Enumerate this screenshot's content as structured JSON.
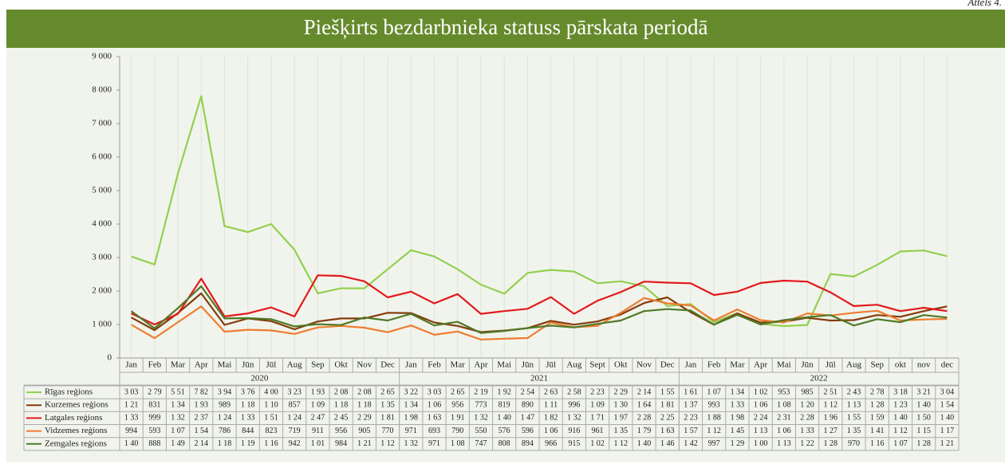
{
  "figure_label": "Attēls 4.",
  "chart_data": {
    "type": "line",
    "title": "Piešķirts bezdarbnieka statuss pārskata periodā",
    "categories": [
      "Jan",
      "Feb",
      "Mar",
      "Apr",
      "Mai",
      "Jūn",
      "Jūl",
      "Aug",
      "Sep",
      "Okt",
      "Nov",
      "Dec",
      "Jan",
      "Feb",
      "Mar",
      "Apr",
      "Mai",
      "Jūn",
      "Jūl",
      "Aug",
      "Sept",
      "Okt",
      "Nov",
      "Dec",
      "Jan",
      "Feb",
      "Mar",
      "Apr",
      "Mai",
      "Jūn",
      "Jūl",
      "Aug",
      "Sep",
      "okt",
      "nov",
      "dec"
    ],
    "category_groups": [
      "2020",
      "2021",
      "2022"
    ],
    "ylim": [
      0,
      9000
    ],
    "yticks": [
      0,
      {
        "value": 1000,
        "label": "1 000"
      },
      {
        "value": 2000,
        "label": "2 000"
      },
      {
        "value": 3000,
        "label": "3 000"
      },
      {
        "value": 4000,
        "label": "4 000"
      },
      {
        "value": 5000,
        "label": "5 000"
      },
      {
        "value": 6000,
        "label": "6 000"
      },
      {
        "value": 7000,
        "label": "7 000"
      },
      {
        "value": 8000,
        "label": "8 000"
      },
      {
        "value": 9000,
        "label": "9 000"
      }
    ],
    "grid": true,
    "series": [
      {
        "name": "Rīgas reģions",
        "color": "#92d050",
        "values": [
          3030,
          2790,
          5510,
          7820,
          3940,
          3760,
          4000,
          3230,
          1930,
          2080,
          2080,
          2650,
          3220,
          3030,
          2650,
          2190,
          1920,
          2540,
          2630,
          2580,
          2230,
          2290,
          2140,
          1550,
          1610,
          1070,
          1340,
          1020,
          953,
          985,
          2510,
          2430,
          2780,
          3180,
          3210,
          3040
        ],
        "value_labels": [
          "3 03",
          "2 79",
          "5 51",
          "7 82",
          "3 94",
          "3 76",
          "4 00",
          "3 23",
          "1 93",
          "2 08",
          "2 08",
          "2 65",
          "3 22",
          "3 03",
          "2 65",
          "2 19",
          "1 92",
          "2 54",
          "2 63",
          "2 58",
          "2 23",
          "2 29",
          "2 14",
          "1 55",
          "1 61",
          "1 07",
          "1 34",
          "1 02",
          "953",
          "985",
          "2 51",
          "2 43",
          "2 78",
          "3 18",
          "3 21",
          "3 04"
        ]
      },
      {
        "name": "Kurzemes reģions",
        "color": "#843c0c",
        "values": [
          1210,
          831,
          1340,
          1930,
          989,
          1180,
          1100,
          857,
          1090,
          1180,
          1180,
          1350,
          1340,
          1060,
          956,
          773,
          819,
          890,
          1110,
          996,
          1090,
          1300,
          1640,
          1810,
          1370,
          993,
          1330,
          1060,
          1080,
          1200,
          1120,
          1130,
          1280,
          1230,
          1400,
          1540
        ],
        "value_labels": [
          "1 21",
          "831",
          "1 34",
          "1 93",
          "989",
          "1 18",
          "1 10",
          "857",
          "1 09",
          "1 18",
          "1 18",
          "1 35",
          "1 34",
          "1 06",
          "956",
          "773",
          "819",
          "890",
          "1 11",
          "996",
          "1 09",
          "1 30",
          "1 64",
          "1 81",
          "1 37",
          "993",
          "1 33",
          "1 06",
          "1 08",
          "1 20",
          "1 12",
          "1 13",
          "1 28",
          "1 23",
          "1 40",
          "1 54"
        ]
      },
      {
        "name": "Latgales reģions",
        "color": "#e3191c",
        "values": [
          1330,
          999,
          1320,
          2370,
          1240,
          1330,
          1510,
          1240,
          2470,
          2450,
          2290,
          1810,
          1980,
          1630,
          1910,
          1320,
          1400,
          1470,
          1820,
          1320,
          1710,
          1970,
          2280,
          2250,
          2230,
          1880,
          1980,
          2240,
          2310,
          2280,
          1960,
          1550,
          1590,
          1400,
          1500,
          1400
        ],
        "value_labels": [
          "1 33",
          "999",
          "1 32",
          "2 37",
          "1 24",
          "1 33",
          "1 51",
          "1 24",
          "2 47",
          "2 45",
          "2 29",
          "1 81",
          "1 98",
          "1 63",
          "1 91",
          "1 32",
          "1 40",
          "1 47",
          "1 82",
          "1 32",
          "1 71",
          "1 97",
          "2 28",
          "2 25",
          "2 23",
          "1 88",
          "1 98",
          "2 24",
          "2 31",
          "2 28",
          "1 96",
          "1 55",
          "1 59",
          "1 40",
          "1 50",
          "1 40"
        ]
      },
      {
        "name": "Vidzemes reģions",
        "color": "#ed7d31",
        "values": [
          994,
          593,
          1070,
          1540,
          786,
          844,
          823,
          719,
          911,
          956,
          905,
          770,
          971,
          693,
          790,
          550,
          576,
          596,
          1060,
          916,
          961,
          1350,
          1790,
          1630,
          1570,
          1120,
          1450,
          1130,
          1060,
          1330,
          1270,
          1350,
          1410,
          1120,
          1150,
          1170
        ],
        "value_labels": [
          "994",
          "593",
          "1 07",
          "1 54",
          "786",
          "844",
          "823",
          "719",
          "911",
          "956",
          "905",
          "770",
          "971",
          "693",
          "790",
          "550",
          "576",
          "596",
          "1 06",
          "916",
          "961",
          "1 35",
          "1 79",
          "1 63",
          "1 57",
          "1 12",
          "1 45",
          "1 13",
          "1 06",
          "1 33",
          "1 27",
          "1 35",
          "1 41",
          "1 12",
          "1 15",
          "1 17"
        ]
      },
      {
        "name": "Zemgales reģions",
        "color": "#4f7a28",
        "values": [
          1400,
          888,
          1490,
          2140,
          1180,
          1190,
          1160,
          942,
          1010,
          984,
          1210,
          1120,
          1320,
          971,
          1080,
          747,
          808,
          894,
          966,
          915,
          1020,
          1120,
          1400,
          1460,
          1420,
          997,
          1290,
          1000,
          1130,
          1220,
          1280,
          970,
          1160,
          1070,
          1280,
          1210
        ],
        "value_labels": [
          "1 40",
          "888",
          "1 49",
          "2 14",
          "1 18",
          "1 19",
          "1 16",
          "942",
          "1 01",
          "984",
          "1 21",
          "1 12",
          "1 32",
          "971",
          "1 08",
          "747",
          "808",
          "894",
          "966",
          "915",
          "1 02",
          "1 12",
          "1 40",
          "1 46",
          "1 42",
          "997",
          "1 29",
          "1 00",
          "1 13",
          "1 22",
          "1 28",
          "970",
          "1 16",
          "1 07",
          "1 28",
          "1 21"
        ]
      }
    ]
  }
}
